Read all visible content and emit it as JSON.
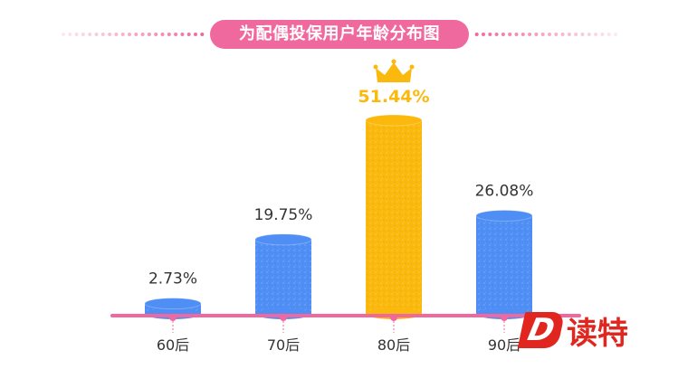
{
  "title": "为配偶投保用户年龄分布图",
  "brand": {
    "mark": "D",
    "text": "读特"
  },
  "colors": {
    "title_bg": "#f0699e",
    "axis": "#f0699e",
    "bar": "#4f8ef5",
    "highlight": "#fbb90d",
    "label": "#333333",
    "brand": "#e0261e"
  },
  "chart_data": {
    "type": "bar",
    "title": "为配偶投保用户年龄分布图",
    "categories": [
      "60后",
      "70后",
      "80后",
      "90后"
    ],
    "values": [
      2.73,
      19.75,
      51.44,
      26.08
    ],
    "value_labels": [
      "2.73%",
      "19.75%",
      "51.44%",
      "26.08%"
    ],
    "unit": "%",
    "highlight_index": 2,
    "highlight_icon": "crown-icon",
    "ylim": [
      0,
      60
    ],
    "grid": false,
    "legend": "none"
  }
}
